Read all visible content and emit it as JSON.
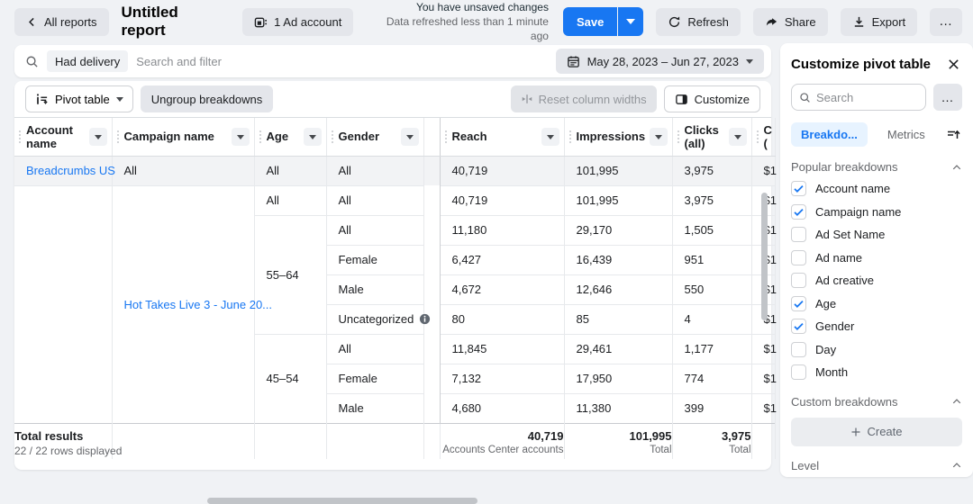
{
  "topbar": {
    "back_label": "All reports",
    "title": "Untitled report",
    "account_chip": "1 Ad account",
    "status_line1": "You have unsaved changes",
    "status_line2": "Data refreshed less than 1 minute ago",
    "save_label": "Save",
    "refresh_label": "Refresh",
    "share_label": "Share",
    "export_label": "Export",
    "more_label": "…"
  },
  "filterbar": {
    "chip": "Had delivery",
    "placeholder": "Search and filter",
    "date_range": "May 28, 2023 – Jun 27, 2023"
  },
  "toolbar": {
    "view_label": "Pivot table",
    "ungroup_label": "Ungroup breakdowns",
    "reset_label": "Reset column widths",
    "customize_label": "Customize"
  },
  "table": {
    "headers": {
      "account": "Account name",
      "campaign": "Campaign name",
      "age": "Age",
      "gender": "Gender",
      "reach": "Reach",
      "impressions": "Impressions",
      "clicks": "Clicks (all)",
      "cost_line1": "C",
      "cost_line2": "("
    },
    "rows": [
      {
        "highlight": true,
        "cells": [
          {
            "col": "account",
            "text": "Breadcrumbs US",
            "link": true
          },
          {
            "col": "campaign",
            "text": "All"
          },
          {
            "col": "age",
            "text": "All"
          },
          {
            "col": "gender",
            "text": "All"
          },
          {
            "col": "reach",
            "text": "40,719"
          },
          {
            "col": "impressions",
            "text": "101,995"
          },
          {
            "col": "clicks",
            "text": "3,975"
          },
          {
            "col": "cost",
            "text": "$1"
          }
        ]
      },
      {
        "cells": [
          {
            "col": "account",
            "text": "",
            "rowspan": 8
          },
          {
            "col": "campaign",
            "text": "Hot Takes Live 3 - June 20...",
            "link": true,
            "rowspan": 8
          },
          {
            "col": "age",
            "text": "All"
          },
          {
            "col": "gender",
            "text": "All"
          },
          {
            "col": "reach",
            "text": "40,719"
          },
          {
            "col": "impressions",
            "text": "101,995"
          },
          {
            "col": "clicks",
            "text": "3,975"
          },
          {
            "col": "cost",
            "text": "$1"
          }
        ]
      },
      {
        "cells": [
          {
            "col": "age",
            "text": "55–64",
            "rowspan": 4
          },
          {
            "col": "gender",
            "text": "All"
          },
          {
            "col": "reach",
            "text": "11,180"
          },
          {
            "col": "impressions",
            "text": "29,170"
          },
          {
            "col": "clicks",
            "text": "1,505"
          },
          {
            "col": "cost",
            "text": "$1"
          }
        ]
      },
      {
        "cells": [
          {
            "col": "gender",
            "text": "Female"
          },
          {
            "col": "reach",
            "text": "6,427"
          },
          {
            "col": "impressions",
            "text": "16,439"
          },
          {
            "col": "clicks",
            "text": "951"
          },
          {
            "col": "cost",
            "text": "$1"
          }
        ]
      },
      {
        "cells": [
          {
            "col": "gender",
            "text": "Male"
          },
          {
            "col": "reach",
            "text": "4,672"
          },
          {
            "col": "impressions",
            "text": "12,646"
          },
          {
            "col": "clicks",
            "text": "550"
          },
          {
            "col": "cost",
            "text": "$1"
          }
        ]
      },
      {
        "cells": [
          {
            "col": "gender",
            "text": "Uncategorized",
            "info": true
          },
          {
            "col": "reach",
            "text": "80"
          },
          {
            "col": "impressions",
            "text": "85"
          },
          {
            "col": "clicks",
            "text": "4"
          },
          {
            "col": "cost",
            "text": "$1"
          }
        ]
      },
      {
        "cells": [
          {
            "col": "age",
            "text": "45–54",
            "rowspan": 3
          },
          {
            "col": "gender",
            "text": "All"
          },
          {
            "col": "reach",
            "text": "11,845"
          },
          {
            "col": "impressions",
            "text": "29,461"
          },
          {
            "col": "clicks",
            "text": "1,177"
          },
          {
            "col": "cost",
            "text": "$1"
          }
        ]
      },
      {
        "cells": [
          {
            "col": "gender",
            "text": "Female"
          },
          {
            "col": "reach",
            "text": "7,132"
          },
          {
            "col": "impressions",
            "text": "17,950"
          },
          {
            "col": "clicks",
            "text": "774"
          },
          {
            "col": "cost",
            "text": "$1"
          }
        ]
      },
      {
        "cells": [
          {
            "col": "gender",
            "text": "Male"
          },
          {
            "col": "reach",
            "text": "4,680"
          },
          {
            "col": "impressions",
            "text": "11,380"
          },
          {
            "col": "clicks",
            "text": "399"
          },
          {
            "col": "cost",
            "text": "$1"
          }
        ]
      }
    ],
    "totals": {
      "label": "Total results",
      "sublabel": "22 / 22 rows displayed",
      "reach": "40,719",
      "reach_sub": "Accounts Center accounts",
      "impressions": "101,995",
      "impressions_sub": "Total",
      "clicks": "3,975",
      "clicks_sub": "Total"
    }
  },
  "panel": {
    "title": "Customize pivot table",
    "search_placeholder": "Search",
    "more_label": "…",
    "tabs": [
      {
        "label": "Breakdo...",
        "active": true
      },
      {
        "label": "Metrics",
        "active": false
      }
    ],
    "sections": {
      "popular": "Popular breakdowns",
      "custom": "Custom breakdowns",
      "level": "Level"
    },
    "breakdowns": [
      {
        "label": "Account name",
        "checked": true
      },
      {
        "label": "Campaign name",
        "checked": true
      },
      {
        "label": "Ad Set Name",
        "checked": false
      },
      {
        "label": "Ad name",
        "checked": false
      },
      {
        "label": "Ad creative",
        "checked": false
      },
      {
        "label": "Age",
        "checked": true
      },
      {
        "label": "Gender",
        "checked": true
      },
      {
        "label": "Day",
        "checked": false
      },
      {
        "label": "Month",
        "checked": false
      }
    ],
    "create_label": "Create"
  },
  "colors": {
    "accent": "#1877F2",
    "accent_light_bg": "#E7F3FF",
    "row_highlight": "#F2F3F5",
    "button_gray": "#E4E6EB"
  }
}
